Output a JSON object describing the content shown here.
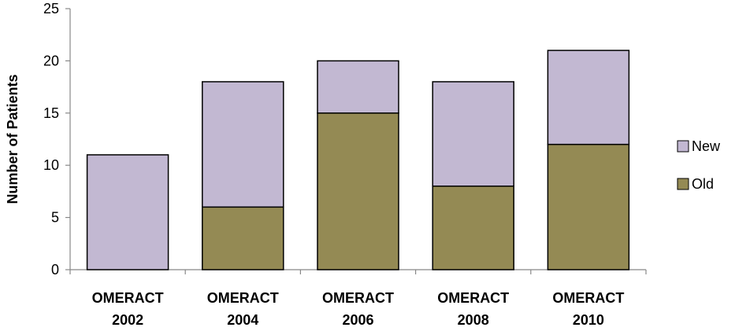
{
  "chart_data": {
    "type": "bar",
    "stacked": true,
    "categories": [
      [
        "OMERACT",
        "2002"
      ],
      [
        "OMERACT",
        "2004"
      ],
      [
        "OMERACT",
        "2006"
      ],
      [
        "OMERACT",
        "2008"
      ],
      [
        "OMERACT",
        "2010"
      ]
    ],
    "series": [
      {
        "name": "Old",
        "values": [
          0,
          6,
          15,
          8,
          12
        ],
        "color": "#948a54"
      },
      {
        "name": "New",
        "values": [
          11,
          12,
          5,
          10,
          9
        ],
        "color": "#c2b8d2"
      }
    ],
    "legend_order": [
      "New",
      "Old"
    ],
    "ylabel": "Number of Patients",
    "ylim": [
      0,
      25
    ],
    "yticks": [
      0,
      5,
      10,
      15,
      20,
      25
    ],
    "grid": false,
    "legend_position": "right"
  }
}
